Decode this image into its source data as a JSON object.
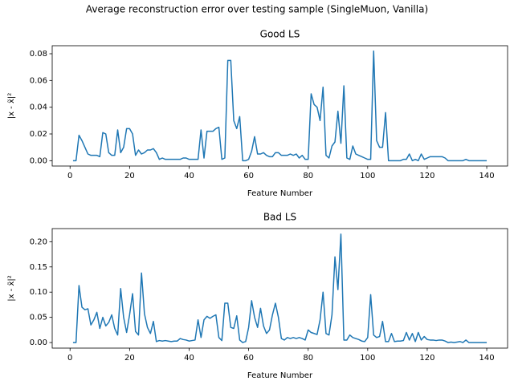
{
  "title": "Average reconstruction error over testing sample (SingleMuon, Vanilla)",
  "chart_data": [
    {
      "type": "line",
      "title": "Good LS",
      "x_label": "Feature Number",
      "y_label": "|x - x̃|²",
      "color": "#1f77b4",
      "x": [
        1,
        2,
        3,
        4,
        5,
        6,
        7,
        8,
        9,
        10,
        11,
        12,
        13,
        14,
        15,
        16,
        17,
        18,
        19,
        20,
        21,
        22,
        23,
        24,
        25,
        26,
        27,
        28,
        29,
        30,
        31,
        32,
        33,
        34,
        35,
        36,
        37,
        38,
        39,
        40,
        41,
        42,
        43,
        44,
        45,
        46,
        47,
        48,
        49,
        50,
        51,
        52,
        53,
        54,
        55,
        56,
        57,
        58,
        59,
        60,
        61,
        62,
        63,
        64,
        65,
        66,
        67,
        68,
        69,
        70,
        71,
        72,
        73,
        74,
        75,
        76,
        77,
        78,
        79,
        80,
        81,
        82,
        83,
        84,
        85,
        86,
        87,
        88,
        89,
        90,
        91,
        92,
        93,
        94,
        95,
        96,
        97,
        98,
        99,
        100,
        101,
        102,
        103,
        104,
        105,
        106,
        107,
        108,
        109,
        110,
        111,
        112,
        113,
        114,
        115,
        116,
        117,
        118,
        119,
        120,
        121,
        122,
        123,
        124,
        125,
        126,
        127,
        128,
        129,
        130,
        131,
        132,
        133,
        134,
        135,
        136,
        137,
        138,
        139,
        140
      ],
      "values": [
        0,
        0,
        0.019,
        0.015,
        0.01,
        0.005,
        0.004,
        0.004,
        0.004,
        0.003,
        0.021,
        0.02,
        0.006,
        0.004,
        0.004,
        0.023,
        0.006,
        0.01,
        0.024,
        0.024,
        0.02,
        0.004,
        0.008,
        0.005,
        0.006,
        0.008,
        0.008,
        0.009,
        0.006,
        0.001,
        0.002,
        0.001,
        0.001,
        0.001,
        0.001,
        0.001,
        0.001,
        0.002,
        0.002,
        0.001,
        0.001,
        0.001,
        0.001,
        0.023,
        0.002,
        0.022,
        0.022,
        0.022,
        0.024,
        0.025,
        0.001,
        0.002,
        0.075,
        0.075,
        0.03,
        0.024,
        0.033,
        0,
        0,
        0.001,
        0.007,
        0.018,
        0.005,
        0.005,
        0.006,
        0.004,
        0.003,
        0.003,
        0.006,
        0.006,
        0.004,
        0.004,
        0.004,
        0.005,
        0.004,
        0.005,
        0.002,
        0.004,
        0.001,
        0.001,
        0.05,
        0.042,
        0.04,
        0.03,
        0.055,
        0.004,
        0.002,
        0.011,
        0.014,
        0.037,
        0.013,
        0.056,
        0.002,
        0.001,
        0.011,
        0.005,
        0.004,
        0.003,
        0.002,
        0.001,
        0.001,
        0.082,
        0.015,
        0.01,
        0.01,
        0.036,
        0,
        0,
        0,
        0,
        0,
        0.001,
        0.001,
        0.005,
        0,
        0.001,
        0,
        0.005,
        0.001,
        0.002,
        0.003,
        0.003,
        0.003,
        0.003,
        0.003,
        0.002,
        0,
        0,
        0,
        0,
        0,
        0,
        0.001,
        0,
        0,
        0,
        0,
        0,
        0,
        0
      ],
      "xlim": [
        -6,
        147
      ],
      "xticks": [
        0,
        20,
        40,
        60,
        80,
        100,
        120,
        140
      ],
      "ylim": [
        -0.004,
        0.086
      ],
      "yticks": [
        {
          "value": 0,
          "label": "0.00"
        },
        {
          "value": 0.02,
          "label": "0.02"
        },
        {
          "value": 0.04,
          "label": "0.04"
        },
        {
          "value": 0.06,
          "label": "0.06"
        },
        {
          "value": 0.08,
          "label": "0.08"
        }
      ]
    },
    {
      "type": "line",
      "title": "Bad LS",
      "x_label": "Feature Number",
      "y_label": "|x - x̃|²",
      "color": "#1f77b4",
      "x": [
        1,
        2,
        3,
        4,
        5,
        6,
        7,
        8,
        9,
        10,
        11,
        12,
        13,
        14,
        15,
        16,
        17,
        18,
        19,
        20,
        21,
        22,
        23,
        24,
        25,
        26,
        27,
        28,
        29,
        30,
        31,
        32,
        33,
        34,
        35,
        36,
        37,
        38,
        39,
        40,
        41,
        42,
        43,
        44,
        45,
        46,
        47,
        48,
        49,
        50,
        51,
        52,
        53,
        54,
        55,
        56,
        57,
        58,
        59,
        60,
        61,
        62,
        63,
        64,
        65,
        66,
        67,
        68,
        69,
        70,
        71,
        72,
        73,
        74,
        75,
        76,
        77,
        78,
        79,
        80,
        81,
        82,
        83,
        84,
        85,
        86,
        87,
        88,
        89,
        90,
        91,
        92,
        93,
        94,
        95,
        96,
        97,
        98,
        99,
        100,
        101,
        102,
        103,
        104,
        105,
        106,
        107,
        108,
        109,
        110,
        111,
        112,
        113,
        114,
        115,
        116,
        117,
        118,
        119,
        120,
        121,
        122,
        123,
        124,
        125,
        126,
        127,
        128,
        129,
        130,
        131,
        132,
        133,
        134,
        135,
        136,
        137,
        138,
        139,
        140
      ],
      "values": [
        0,
        0,
        0.113,
        0.07,
        0.065,
        0.067,
        0.035,
        0.045,
        0.06,
        0.028,
        0.05,
        0.033,
        0.04,
        0.055,
        0.028,
        0.015,
        0.107,
        0.05,
        0.02,
        0.055,
        0.097,
        0.022,
        0.015,
        0.138,
        0.057,
        0.03,
        0.018,
        0.042,
        0.002,
        0.004,
        0.003,
        0.004,
        0.003,
        0.002,
        0.003,
        0.003,
        0.008,
        0.006,
        0.005,
        0.003,
        0.004,
        0.005,
        0.045,
        0.01,
        0.045,
        0.052,
        0.048,
        0.052,
        0.055,
        0.01,
        0.004,
        0.078,
        0.078,
        0.03,
        0.028,
        0.053,
        0.005,
        0,
        0.002,
        0.03,
        0.083,
        0.05,
        0.03,
        0.068,
        0.033,
        0.018,
        0.025,
        0.055,
        0.078,
        0.05,
        0.008,
        0.005,
        0.01,
        0.008,
        0.01,
        0.008,
        0.01,
        0.008,
        0.005,
        0.025,
        0.02,
        0.018,
        0.016,
        0.045,
        0.1,
        0.018,
        0.015,
        0.055,
        0.17,
        0.105,
        0.215,
        0.005,
        0.005,
        0.015,
        0.01,
        0.008,
        0.006,
        0.003,
        0.002,
        0.01,
        0.095,
        0.015,
        0.01,
        0.012,
        0.042,
        0.002,
        0.002,
        0.018,
        0.002,
        0.003,
        0.003,
        0.004,
        0.02,
        0.005,
        0.018,
        0.002,
        0.02,
        0.005,
        0.012,
        0.006,
        0.005,
        0.005,
        0.004,
        0.005,
        0.005,
        0.003,
        0,
        0.001,
        0,
        0.001,
        0.002,
        0,
        0.005,
        0,
        0,
        0,
        0,
        0,
        0,
        0
      ],
      "xlim": [
        -6,
        147
      ],
      "xticks": [
        0,
        20,
        40,
        60,
        80,
        100,
        120,
        140
      ],
      "ylim": [
        -0.011,
        0.226
      ],
      "yticks": [
        {
          "value": 0,
          "label": "0.00"
        },
        {
          "value": 0.05,
          "label": "0.05"
        },
        {
          "value": 0.1,
          "label": "0.10"
        },
        {
          "value": 0.15,
          "label": "0.15"
        },
        {
          "value": 0.2,
          "label": "0.20"
        }
      ]
    }
  ]
}
